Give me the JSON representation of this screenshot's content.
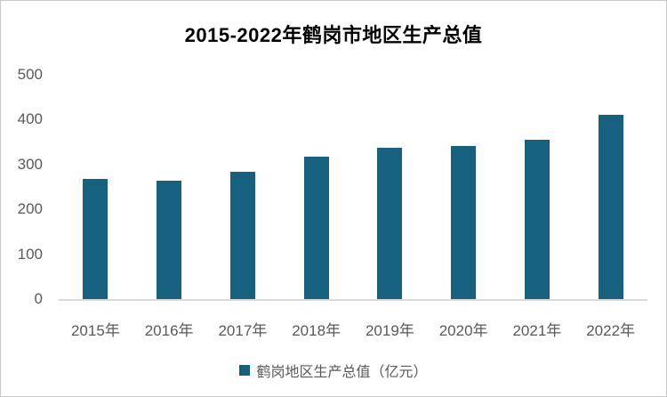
{
  "page": {
    "background": "#ffffff",
    "border_color": "#c9c9c9"
  },
  "chart_data": {
    "type": "bar",
    "title": "2015-2022年鹤岗市地区生产总值",
    "categories": [
      "2015年",
      "2016年",
      "2017年",
      "2018年",
      "2019年",
      "2020年",
      "2021年",
      "2022年"
    ],
    "series": [
      {
        "name": "鹤岗地区生产总值（亿元）",
        "values": [
          267,
          264,
          284,
          317,
          338,
          341,
          355,
          411
        ]
      }
    ],
    "xlabel": "",
    "ylabel": "",
    "ylim": [
      0,
      500
    ],
    "yticks": [
      0,
      100,
      200,
      300,
      400,
      500
    ],
    "grid": false,
    "legend_position": "bottom",
    "bar_color": "#166080",
    "title_color": "#000000",
    "axis_label_color": "#595959",
    "axis_line_color": "#d9d9d9"
  }
}
